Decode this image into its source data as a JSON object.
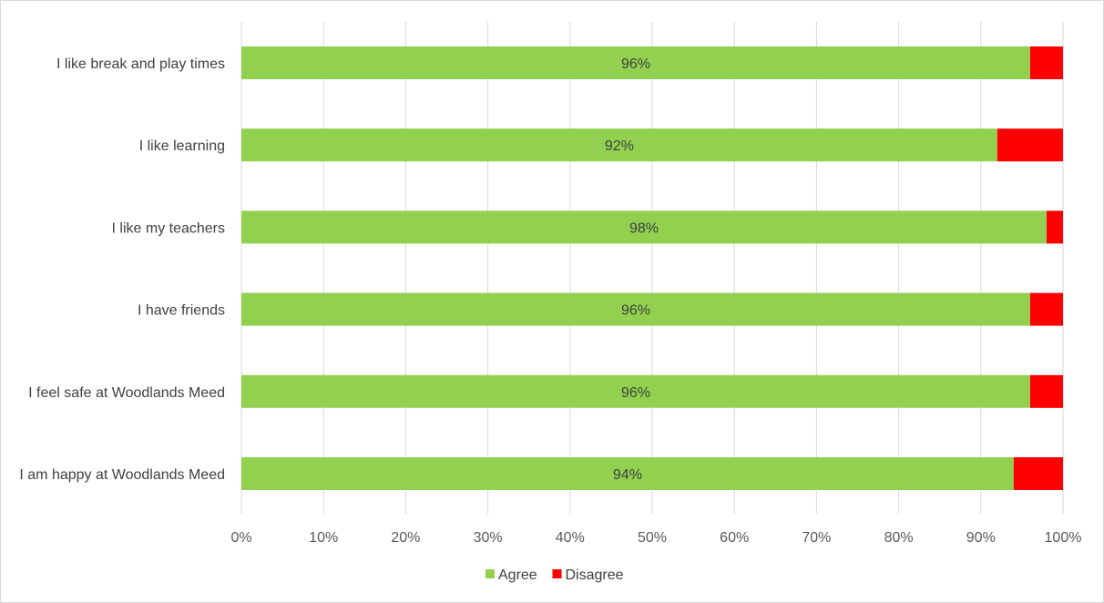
{
  "chart_data": {
    "type": "bar",
    "orientation": "horizontal",
    "stacked": "percent",
    "categories": [
      "I like break and play times",
      "I like learning",
      "I like my teachers",
      "I have friends",
      "I feel safe at Woodlands Meed",
      "I am happy at Woodlands Meed"
    ],
    "series": [
      {
        "name": "Agree",
        "color": "#92d050",
        "values": [
          96,
          92,
          98,
          96,
          96,
          94
        ],
        "data_labels": [
          "96%",
          "92%",
          "98%",
          "96%",
          "96%",
          "94%"
        ]
      },
      {
        "name": "Disagree",
        "color": "#ff0000",
        "values": [
          4,
          8,
          2,
          4,
          4,
          6
        ]
      }
    ],
    "x_ticks": [
      "0%",
      "10%",
      "20%",
      "30%",
      "40%",
      "50%",
      "60%",
      "70%",
      "80%",
      "90%",
      "100%"
    ],
    "xlim": [
      0,
      100
    ],
    "grid": "vertical",
    "legend": "bottom-center"
  }
}
